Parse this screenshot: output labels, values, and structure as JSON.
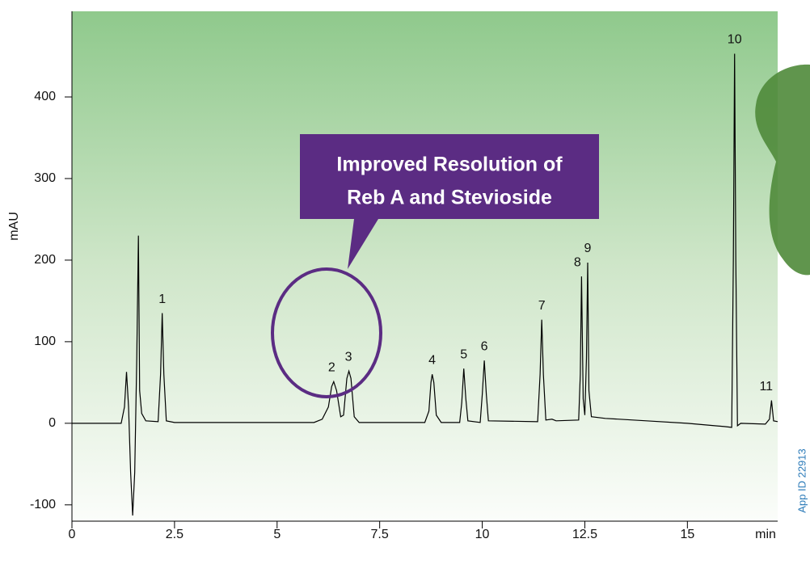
{
  "chart_data": {
    "type": "line",
    "y_label": "mAU",
    "x_label": "min",
    "xlim": [
      0,
      17.2
    ],
    "ylim": [
      -120,
      505
    ],
    "xticks": [
      0,
      2.5,
      5,
      7.5,
      10,
      12.5,
      15
    ],
    "yticks": [
      -100,
      0,
      100,
      200,
      300,
      400
    ],
    "series": [
      {
        "color": "#000000",
        "x": [
          0,
          1.2,
          1.28,
          1.33,
          1.38,
          1.43,
          1.48,
          1.53,
          1.58,
          1.62,
          1.65,
          1.7,
          1.8,
          2.1,
          2.16,
          2.2,
          2.24,
          2.3,
          2.5,
          5.9,
          6.1,
          6.25,
          6.33,
          6.38,
          6.45,
          6.55,
          6.62,
          6.7,
          6.75,
          6.8,
          6.88,
          7.0,
          8.6,
          8.7,
          8.75,
          8.78,
          8.82,
          8.88,
          9.0,
          9.45,
          9.5,
          9.55,
          9.6,
          9.65,
          9.95,
          10.0,
          10.05,
          10.1,
          10.15,
          11.35,
          11.41,
          11.45,
          11.49,
          11.55,
          11.7,
          11.8,
          12.35,
          12.39,
          12.42,
          12.46,
          12.5,
          12.54,
          12.57,
          12.6,
          12.66,
          13.0,
          14.0,
          15.0,
          15.9,
          16.08,
          16.12,
          16.15,
          16.18,
          16.22,
          16.3,
          16.9,
          17.0,
          17.05,
          17.1,
          17.2
        ],
        "values": [
          0,
          0,
          20,
          63,
          20,
          -60,
          -113,
          -60,
          80,
          230,
          40,
          12,
          3,
          2,
          60,
          135,
          60,
          3,
          1,
          1,
          5,
          20,
          45,
          51,
          40,
          8,
          10,
          55,
          64,
          55,
          8,
          1,
          1,
          15,
          50,
          60,
          50,
          10,
          1,
          1,
          25,
          67,
          30,
          3,
          1,
          35,
          77,
          35,
          3,
          2,
          60,
          127,
          60,
          4,
          5,
          3,
          4,
          60,
          180,
          30,
          10,
          80,
          197,
          40,
          8,
          6,
          3,
          0,
          -4,
          -5,
          200,
          453,
          200,
          -3,
          0,
          -1,
          5,
          28,
          3,
          2
        ]
      }
    ],
    "peak_labels": [
      {
        "text": "1",
        "x": 2.2,
        "y": 135
      },
      {
        "text": "2",
        "x": 6.33,
        "y": 51
      },
      {
        "text": "3",
        "x": 6.74,
        "y": 64
      },
      {
        "text": "4",
        "x": 8.78,
        "y": 60
      },
      {
        "text": "5",
        "x": 9.55,
        "y": 67
      },
      {
        "text": "6",
        "x": 10.05,
        "y": 77
      },
      {
        "text": "7",
        "x": 11.45,
        "y": 127
      },
      {
        "text": "8",
        "x": 12.32,
        "y": 180
      },
      {
        "text": "9",
        "x": 12.57,
        "y": 197
      },
      {
        "text": "10",
        "x": 16.15,
        "y": 453
      },
      {
        "text": "11",
        "x": 16.92,
        "y": 28
      }
    ],
    "callout": [
      "Improved Resolution of",
      "Reb A and Stevioside"
    ],
    "app_id": "App ID 22913"
  }
}
